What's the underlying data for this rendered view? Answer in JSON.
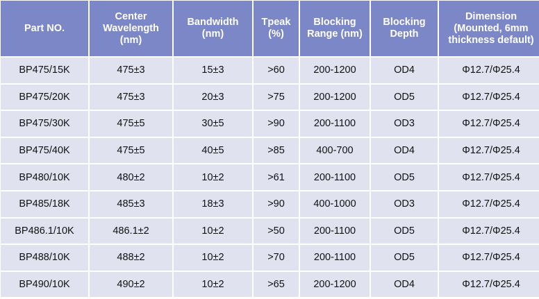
{
  "headers": [
    "Part NO.",
    "Center Wavelength (nm)",
    "Bandwidth (nm)",
    "Tpeak (%)",
    "Blocking Range (nm)",
    "Blocking Depth",
    "Dimension (Mounted, 6mm thickness default)"
  ],
  "rows": [
    [
      "BP475/15K",
      "475±3",
      "15±3",
      ">60",
      "200-1200",
      "OD4",
      "Φ12.7/Φ25.4"
    ],
    [
      "BP475/20K",
      "475±3",
      "20±3",
      ">75",
      "200-1200",
      "OD5",
      "Φ12.7/Φ25.4"
    ],
    [
      "BP475/30K",
      "475±5",
      "30±5",
      ">90",
      "200-1100",
      "OD3",
      "Φ12.7/Φ25.4"
    ],
    [
      "BP475/40K",
      "475±5",
      "40±5",
      ">85",
      "400-700",
      "OD4",
      "Φ12.7/Φ25.4"
    ],
    [
      "BP480/10K",
      "480±2",
      "10±2",
      ">61",
      "200-1100",
      "OD5",
      "Φ12.7/Φ25.4"
    ],
    [
      "BP485/18K",
      "485±3",
      "18±3",
      ">90",
      "400-1000",
      "OD3",
      "Φ12.7/Φ25.4"
    ],
    [
      "BP486.1/10K",
      "486.1±2",
      "10±2",
      ">50",
      "200-1100",
      "OD5",
      "Φ12.7/Φ25.4"
    ],
    [
      "BP488/10K",
      "488±2",
      "10±2",
      ">70",
      "200-1100",
      "OD5",
      "Φ12.7/Φ25.4"
    ],
    [
      "BP490/10K",
      "490±2",
      "10±2",
      ">65",
      "200-1200",
      "OD4",
      "Φ12.7/Φ25.4"
    ]
  ],
  "colors": {
    "header_bg": "#7c87c7",
    "row_bg": "#e0e2f0"
  }
}
